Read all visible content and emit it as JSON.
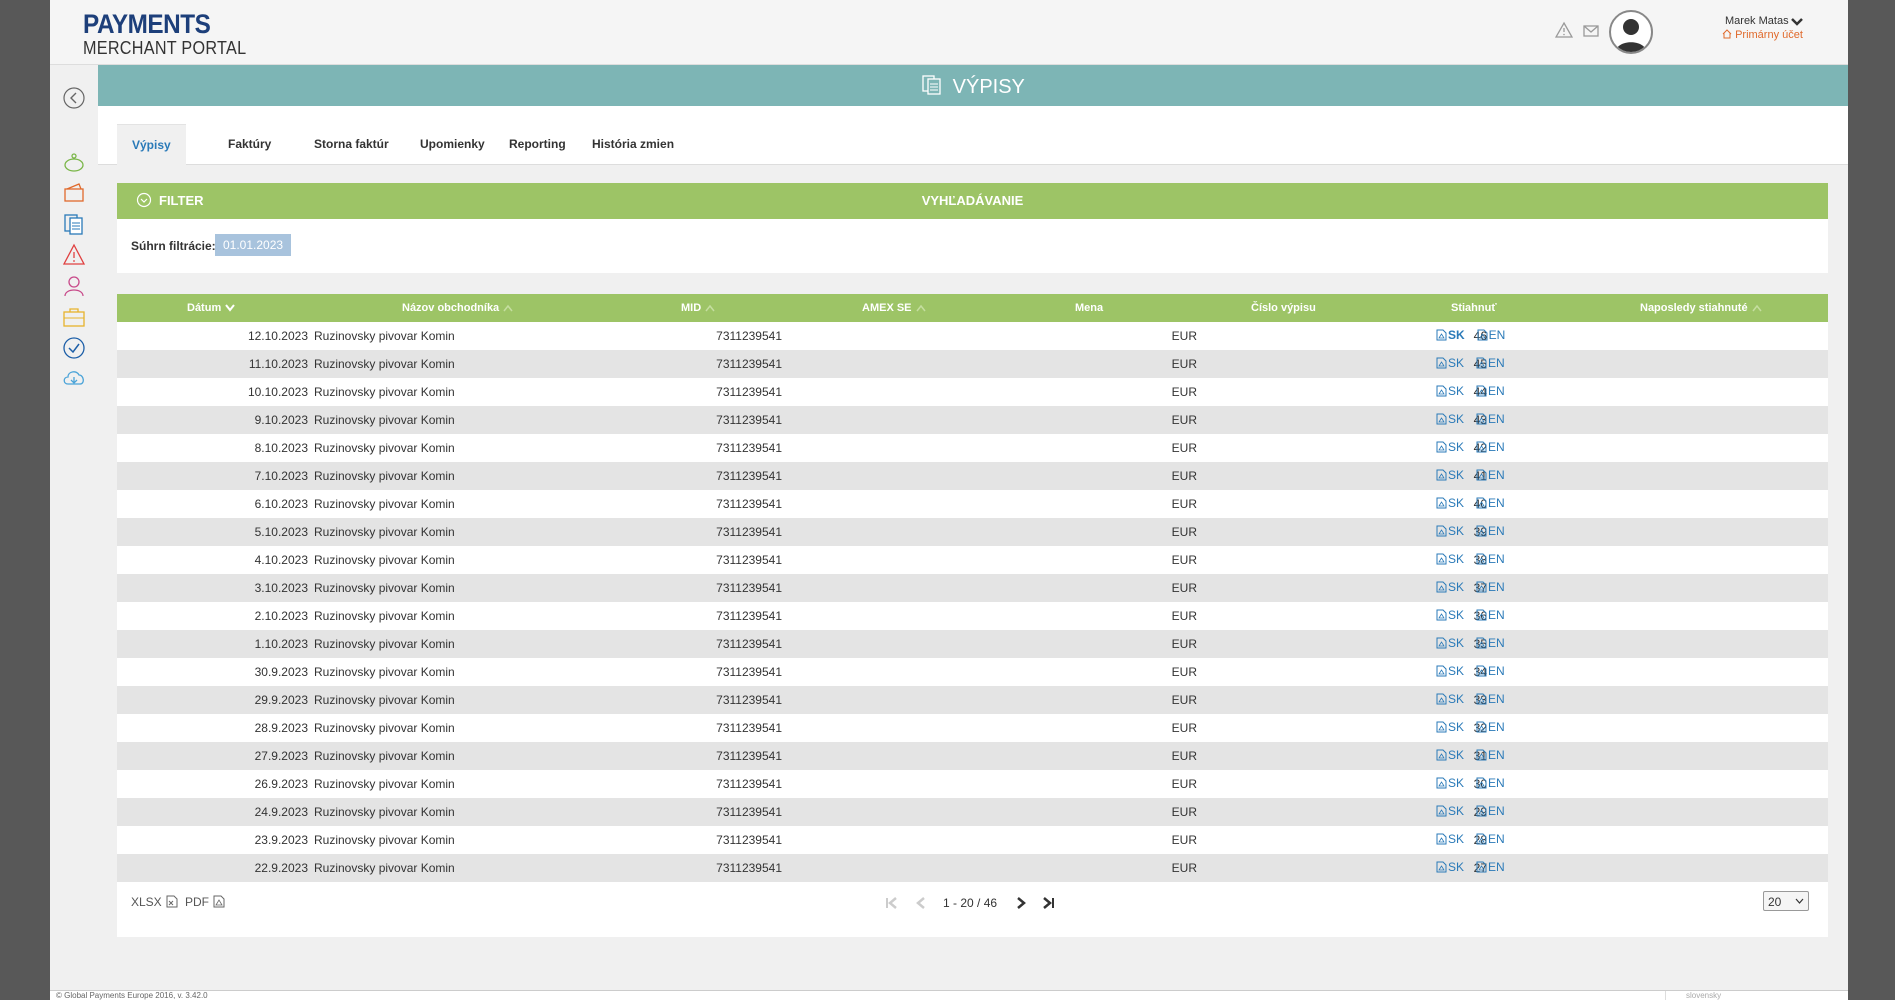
{
  "brand": {
    "line1": "PAYMENTS",
    "line2": "MERCHANT PORTAL"
  },
  "user": {
    "name": "Marek Matas",
    "role": "Primárny účet"
  },
  "page_title": "VÝPISY",
  "tabs": [
    {
      "label": "Výpisy",
      "active": true
    },
    {
      "label": "Faktúry",
      "active": false
    },
    {
      "label": "Storna faktúr",
      "active": false
    },
    {
      "label": "Upomienky",
      "active": false
    },
    {
      "label": "Reporting",
      "active": false
    },
    {
      "label": "História zmien",
      "active": false
    }
  ],
  "filter": {
    "label": "FILTER",
    "search_label": "VYHĽADÁVANIE"
  },
  "summary": {
    "label": "Súhrn filtrácie:",
    "chip": "01.01.2023"
  },
  "table": {
    "columns": [
      {
        "label": "Dátum",
        "sort": "desc"
      },
      {
        "label": "Názov obchodníka",
        "sort": "asc"
      },
      {
        "label": "MID",
        "sort": "asc"
      },
      {
        "label": "AMEX SE",
        "sort": "asc"
      },
      {
        "label": "Mena",
        "sort": ""
      },
      {
        "label": "Číslo výpisu",
        "sort": ""
      },
      {
        "label": "Stiahnuť",
        "sort": ""
      },
      {
        "label": "Naposledy stiahnuté",
        "sort": "asc"
      }
    ],
    "download_sk": "SK",
    "download_en": "EN",
    "rows": [
      {
        "date": "12.10.2023",
        "merchant": "Ruzinovsky pivovar Komin",
        "mid": "7311239541",
        "currency": "EUR",
        "number": "46"
      },
      {
        "date": "11.10.2023",
        "merchant": "Ruzinovsky pivovar Komin",
        "mid": "7311239541",
        "currency": "EUR",
        "number": "45"
      },
      {
        "date": "10.10.2023",
        "merchant": "Ruzinovsky pivovar Komin",
        "mid": "7311239541",
        "currency": "EUR",
        "number": "44"
      },
      {
        "date": "9.10.2023",
        "merchant": "Ruzinovsky pivovar Komin",
        "mid": "7311239541",
        "currency": "EUR",
        "number": "43"
      },
      {
        "date": "8.10.2023",
        "merchant": "Ruzinovsky pivovar Komin",
        "mid": "7311239541",
        "currency": "EUR",
        "number": "42"
      },
      {
        "date": "7.10.2023",
        "merchant": "Ruzinovsky pivovar Komin",
        "mid": "7311239541",
        "currency": "EUR",
        "number": "41"
      },
      {
        "date": "6.10.2023",
        "merchant": "Ruzinovsky pivovar Komin",
        "mid": "7311239541",
        "currency": "EUR",
        "number": "40"
      },
      {
        "date": "5.10.2023",
        "merchant": "Ruzinovsky pivovar Komin",
        "mid": "7311239541",
        "currency": "EUR",
        "number": "39"
      },
      {
        "date": "4.10.2023",
        "merchant": "Ruzinovsky pivovar Komin",
        "mid": "7311239541",
        "currency": "EUR",
        "number": "38"
      },
      {
        "date": "3.10.2023",
        "merchant": "Ruzinovsky pivovar Komin",
        "mid": "7311239541",
        "currency": "EUR",
        "number": "37"
      },
      {
        "date": "2.10.2023",
        "merchant": "Ruzinovsky pivovar Komin",
        "mid": "7311239541",
        "currency": "EUR",
        "number": "36"
      },
      {
        "date": "1.10.2023",
        "merchant": "Ruzinovsky pivovar Komin",
        "mid": "7311239541",
        "currency": "EUR",
        "number": "35"
      },
      {
        "date": "30.9.2023",
        "merchant": "Ruzinovsky pivovar Komin",
        "mid": "7311239541",
        "currency": "EUR",
        "number": "34"
      },
      {
        "date": "29.9.2023",
        "merchant": "Ruzinovsky pivovar Komin",
        "mid": "7311239541",
        "currency": "EUR",
        "number": "33"
      },
      {
        "date": "28.9.2023",
        "merchant": "Ruzinovsky pivovar Komin",
        "mid": "7311239541",
        "currency": "EUR",
        "number": "32"
      },
      {
        "date": "27.9.2023",
        "merchant": "Ruzinovsky pivovar Komin",
        "mid": "7311239541",
        "currency": "EUR",
        "number": "31"
      },
      {
        "date": "26.9.2023",
        "merchant": "Ruzinovsky pivovar Komin",
        "mid": "7311239541",
        "currency": "EUR",
        "number": "30"
      },
      {
        "date": "24.9.2023",
        "merchant": "Ruzinovsky pivovar Komin",
        "mid": "7311239541",
        "currency": "EUR",
        "number": "29"
      },
      {
        "date": "23.9.2023",
        "merchant": "Ruzinovsky pivovar Komin",
        "mid": "7311239541",
        "currency": "EUR",
        "number": "28"
      },
      {
        "date": "22.9.2023",
        "merchant": "Ruzinovsky pivovar Komin",
        "mid": "7311239541",
        "currency": "EUR",
        "number": "27"
      }
    ]
  },
  "export": {
    "xlsx": "XLSX",
    "pdf": "PDF"
  },
  "pagination": {
    "info": "1 - 20 / 46",
    "page_size": "20"
  },
  "footer": {
    "copyright": "© Global Payments Europe 2016, v. 3.42.0",
    "language": "slovensky"
  },
  "colors": {
    "green": "#9dc466",
    "teal": "#7db5b5",
    "link": "#2a7ab8",
    "brand": "#1d3f7a",
    "role": "#e06a2c"
  }
}
